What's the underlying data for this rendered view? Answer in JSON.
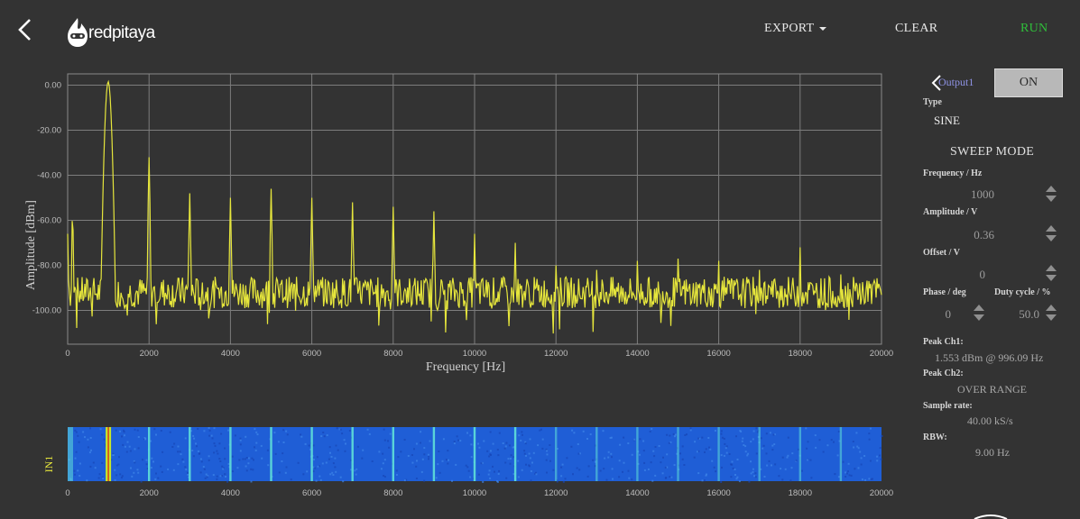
{
  "header": {
    "logo_text": "redpitaya",
    "menu": {
      "export": "EXPORT",
      "clear": "CLEAR",
      "run": "RUN"
    }
  },
  "plot": {
    "ylabel": "Amplitude [dBm]",
    "xlabel": "Frequency [Hz]",
    "yticks": [
      "0.00",
      "-20.00",
      "-40.00",
      "-60.00",
      "-80.00",
      "-100.00"
    ],
    "xticks": [
      "0",
      "2000",
      "4000",
      "6000",
      "8000",
      "10000",
      "12000",
      "14000",
      "16000",
      "18000",
      "20000"
    ]
  },
  "chart_data": {
    "type": "line",
    "xlabel": "Frequency [Hz]",
    "ylabel": "Amplitude [dBm]",
    "xlim": [
      0,
      20000
    ],
    "ylim": [
      -115,
      5
    ],
    "grid": true,
    "series": [
      {
        "color": "#e6e63c",
        "noise_floor_dbm": -92,
        "peaks": [
          {
            "x": 0,
            "y": -66
          },
          {
            "x": 120,
            "y": -57
          },
          {
            "x": 996.09,
            "y": 1.553
          },
          {
            "x": 2000,
            "y": -32
          },
          {
            "x": 3000,
            "y": -48
          },
          {
            "x": 4000,
            "y": -50
          },
          {
            "x": 5000,
            "y": -46
          },
          {
            "x": 6000,
            "y": -50
          },
          {
            "x": 7000,
            "y": -52
          },
          {
            "x": 8000,
            "y": -54
          },
          {
            "x": 9000,
            "y": -56
          },
          {
            "x": 10000,
            "y": -66
          },
          {
            "x": 11000,
            "y": -70
          },
          {
            "x": 12000,
            "y": -80
          },
          {
            "x": 13000,
            "y": -82
          },
          {
            "x": 14000,
            "y": -78
          },
          {
            "x": 15000,
            "y": -77
          },
          {
            "x": 16000,
            "y": -78
          },
          {
            "x": 17000,
            "y": -82
          },
          {
            "x": 18000,
            "y": -72
          },
          {
            "x": 19000,
            "y": -84
          }
        ]
      }
    ]
  },
  "waterfall": {
    "label": "IN1",
    "xticks": [
      "0",
      "2000",
      "4000",
      "6000",
      "8000",
      "10000",
      "12000",
      "14000",
      "16000",
      "18000",
      "20000"
    ],
    "colors": {
      "background": "#1f5ed6",
      "line": "#5fe0d8",
      "hot": "#c8e628"
    },
    "line_freqs": [
      1000,
      2000,
      3000,
      4000,
      5000,
      6000,
      7000,
      8000,
      9000,
      10000,
      11000,
      12000,
      13000,
      14000,
      15000,
      16000,
      17000,
      18000,
      19000
    ]
  },
  "panel": {
    "output_label": "Output1",
    "on_button": "ON",
    "type_label": "Type",
    "type_value": "SINE",
    "sweep_mode": "SWEEP MODE",
    "frequency_label": "Frequency / Hz",
    "frequency_value": "1000",
    "amplitude_label": "Amplitude / V",
    "amplitude_value": "0.36",
    "offset_label": "Offset / V",
    "offset_value": "0",
    "phase_label": "Phase / deg",
    "phase_value": "0",
    "duty_label": "Duty cycle / %",
    "duty_value": "50.0",
    "peak_ch1_label": "Peak Ch1:",
    "peak_ch1_value": "1.553 dBm @ 996.09 Hz",
    "peak_ch2_label": "Peak Ch2:",
    "peak_ch2_value": "OVER RANGE",
    "sample_rate_label": "Sample rate:",
    "sample_rate_value": "40.00 kS/s",
    "rbw_label": "RBW:",
    "rbw_value": "9.00 Hz"
  }
}
